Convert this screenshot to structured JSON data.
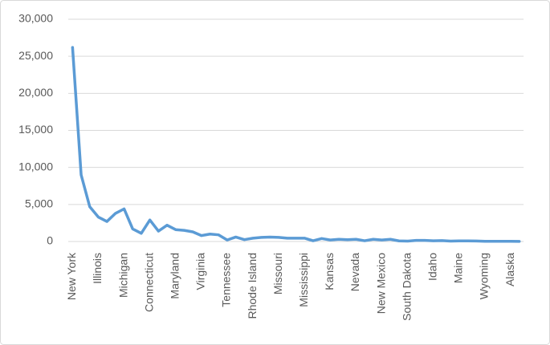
{
  "chart_data": {
    "type": "line",
    "categories": [
      "New York",
      null,
      null,
      "Illinois",
      null,
      null,
      "Michigan",
      null,
      null,
      "Connecticut",
      null,
      null,
      "Maryland",
      null,
      null,
      "Virginia",
      null,
      null,
      "Tennessee",
      null,
      null,
      "Rhode Island",
      null,
      null,
      "Missouri",
      null,
      null,
      "Mississippi",
      null,
      null,
      "Kansas",
      null,
      null,
      "Nevada",
      null,
      null,
      "New Mexico",
      null,
      null,
      "South Dakota",
      null,
      null,
      "Idaho",
      null,
      null,
      "Maine",
      null,
      null,
      "Wyoming",
      null,
      null,
      "Alaska",
      null
    ],
    "values": [
      26200,
      9000,
      4700,
      3300,
      2700,
      3800,
      4400,
      1700,
      1100,
      2900,
      1400,
      2200,
      1600,
      1500,
      1300,
      800,
      1000,
      900,
      200,
      600,
      250,
      450,
      550,
      600,
      550,
      450,
      450,
      450,
      100,
      400,
      200,
      300,
      250,
      300,
      100,
      300,
      200,
      300,
      80,
      50,
      150,
      150,
      100,
      120,
      50,
      80,
      80,
      70,
      30,
      30,
      30,
      30,
      20
    ],
    "color": "#5b9bd5",
    "ylim": [
      0,
      30000
    ],
    "yticks": [
      0,
      {
        "value": 5000,
        "label": "5,000"
      },
      {
        "value": 10000,
        "label": "10,000"
      },
      {
        "value": 15000,
        "label": "15,000"
      },
      {
        "value": 20000,
        "label": "20,000"
      },
      {
        "value": 25000,
        "label": "25,000"
      },
      {
        "value": 30000,
        "label": "30,000"
      }
    ],
    "grid": true
  }
}
